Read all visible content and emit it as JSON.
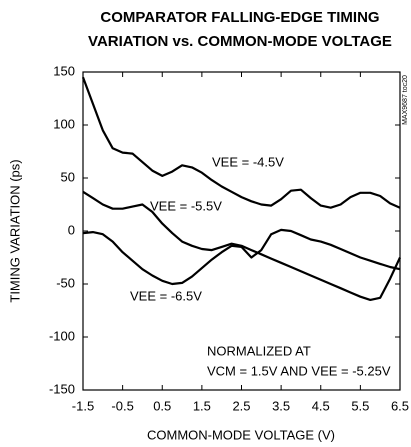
{
  "chart_data": {
    "type": "line",
    "title": [
      "COMPARATOR FALLING-EDGE TIMING",
      "VARIATION vs. COMMON-MODE VOLTAGE"
    ],
    "x_label": "COMMON-MODE VOLTAGE (V)",
    "y_label": "TIMING VARIATION (ps)",
    "watermark": "MAX9687 toc20",
    "annotations": [
      "NORMALIZED AT",
      "VCM = 1.5V AND VEE = -5.25V"
    ],
    "xlim": [
      -1.5,
      6.5
    ],
    "xticks": [
      -1.5,
      -0.5,
      0.5,
      1.5,
      2.5,
      3.5,
      4.5,
      5.5,
      6.5
    ],
    "ylim": [
      -150,
      150
    ],
    "yticks": [
      -150,
      -100,
      -50,
      0,
      50,
      100,
      150
    ],
    "grid": false,
    "x": [
      -1.5,
      -1.25,
      -1,
      -0.75,
      -0.5,
      -0.25,
      0,
      0.25,
      0.5,
      0.75,
      1,
      1.25,
      1.5,
      1.75,
      2,
      2.25,
      2.5,
      2.75,
      3,
      3.25,
      3.5,
      3.75,
      4,
      4.25,
      4.5,
      4.75,
      5,
      5.25,
      5.5,
      5.75,
      6,
      6.25,
      6.5
    ],
    "series": [
      {
        "name": "VEE = -4.5V",
        "color": "#000000",
        "values": [
          145,
          120,
          95,
          78,
          74,
          73,
          65,
          57,
          52,
          56,
          62,
          60,
          55,
          48,
          42,
          37,
          32,
          28,
          25,
          24,
          30,
          38,
          39,
          31,
          24,
          22,
          25,
          32,
          36,
          36,
          33,
          26,
          22
        ]
      },
      {
        "name": "VEE = -5.5V",
        "color": "#000000",
        "values": [
          37,
          31,
          25,
          21,
          21,
          23,
          25,
          18,
          7,
          -2,
          -10,
          -14,
          -17,
          -18,
          -15,
          -12,
          -14,
          -18,
          -22,
          -26,
          -30,
          -34,
          -38,
          -42,
          -46,
          -50,
          -54,
          -58,
          -62,
          -65,
          -63,
          -45,
          -25
        ]
      },
      {
        "name": "VEE = -6.5V",
        "color": "#000000",
        "values": [
          -2,
          -1,
          -3,
          -10,
          -20,
          -28,
          -36,
          -42,
          -47,
          -50,
          -49,
          -43,
          -35,
          -27,
          -20,
          -14,
          -15,
          -25,
          -18,
          -3,
          1,
          0,
          -4,
          -8,
          -10,
          -13,
          -17,
          -21,
          -25,
          -28,
          -31,
          -34,
          -36
        ]
      }
    ]
  }
}
